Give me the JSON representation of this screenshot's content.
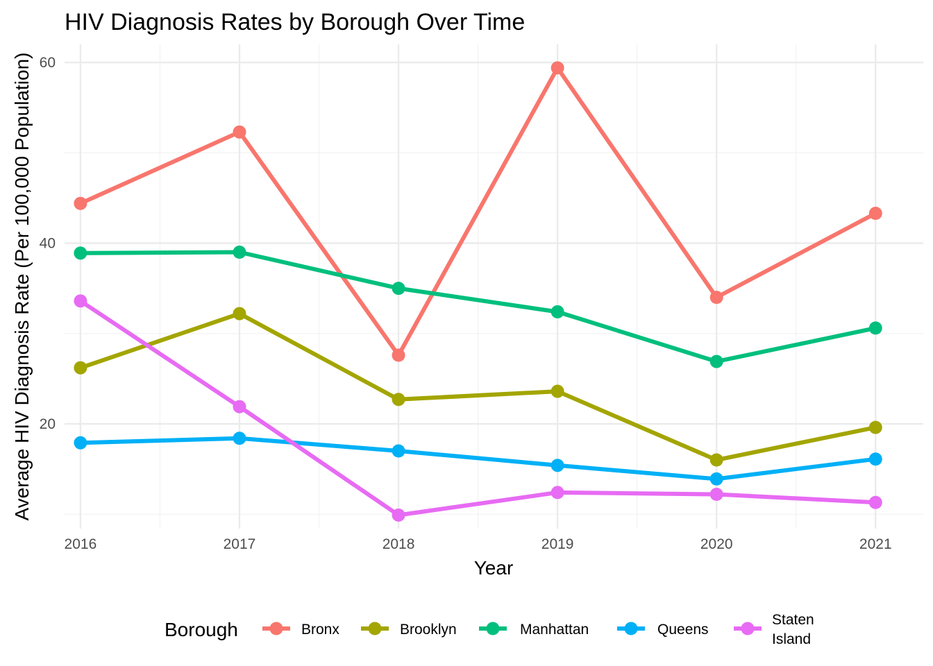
{
  "chart_data": {
    "type": "line",
    "title": "HIV Diagnosis Rates by Borough Over Time",
    "xlabel": "Year",
    "ylabel": "Average HIV Diagnosis Rate (Per 100,000 Population)",
    "x": [
      "2016",
      "2017",
      "2018",
      "2019",
      "2020",
      "2021"
    ],
    "xlim": [
      2015.9,
      2021.3
    ],
    "ylim": [
      8.4,
      62
    ],
    "yticks": [
      20,
      40,
      60
    ],
    "yticks_minor": [
      10,
      30,
      50
    ],
    "grid": true,
    "legend": {
      "title": "Borough",
      "position": "bottom"
    },
    "series": [
      {
        "name": "Bronx",
        "color": "#F8766D",
        "values": [
          44.4,
          52.3,
          27.6,
          59.4,
          34.0,
          43.3
        ]
      },
      {
        "name": "Brooklyn",
        "color": "#A3A500",
        "values": [
          26.2,
          32.2,
          22.7,
          23.6,
          16.0,
          19.6
        ]
      },
      {
        "name": "Manhattan",
        "color": "#00BF7D",
        "values": [
          38.9,
          39.0,
          35.0,
          32.4,
          26.9,
          30.6
        ]
      },
      {
        "name": "Queens",
        "color": "#00B0F6",
        "values": [
          17.9,
          18.4,
          17.0,
          15.4,
          13.9,
          16.1
        ]
      },
      {
        "name": "Staten\nIsland",
        "color": "#E76BF3",
        "values": [
          33.6,
          21.9,
          9.9,
          12.4,
          12.2,
          11.3
        ]
      }
    ]
  }
}
